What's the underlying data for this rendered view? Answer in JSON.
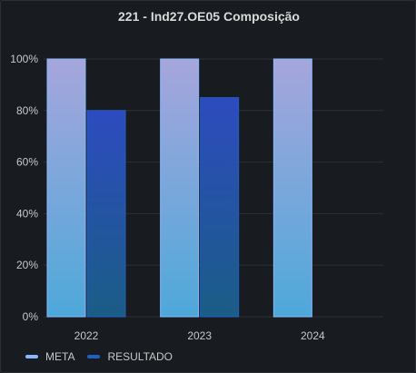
{
  "panel": {
    "title": "221 - Ind27.OE05 Composição"
  },
  "chart_data": {
    "type": "bar",
    "title": "221 - Ind27.OE05 Composição",
    "categories": [
      "2022",
      "2023",
      "2024"
    ],
    "series": [
      {
        "name": "META",
        "values": [
          100,
          100,
          100
        ],
        "color": "#8ab8ff"
      },
      {
        "name": "RESULTADO",
        "values": [
          80,
          85,
          null
        ],
        "color": "#1f60c4"
      }
    ],
    "y_ticks": [
      "0%",
      "20%",
      "40%",
      "60%",
      "80%",
      "100%"
    ],
    "ylim": [
      0,
      100
    ],
    "grid": true,
    "legend_position": "bottom-left"
  }
}
